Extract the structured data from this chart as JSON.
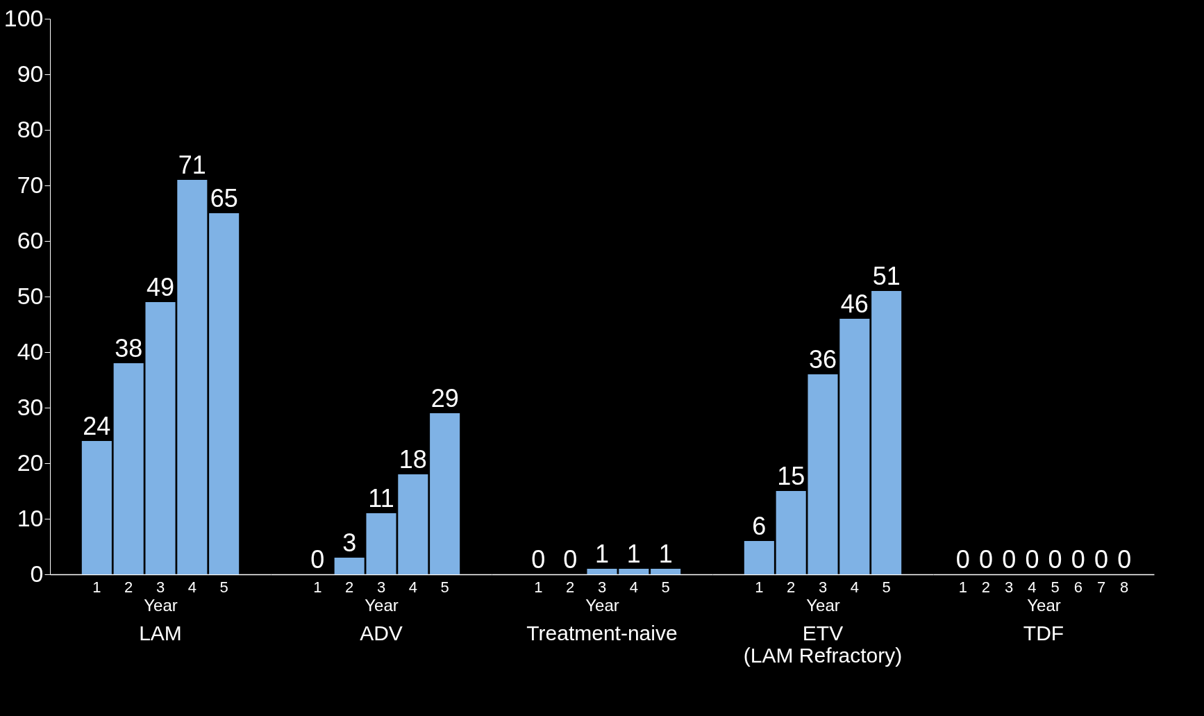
{
  "chart_data": [
    {
      "type": "bar",
      "title": "LAM",
      "xlabel": "Year",
      "categories": [
        "1",
        "2",
        "3",
        "4",
        "5"
      ],
      "values": [
        24,
        38,
        49,
        71,
        65
      ],
      "color": "#7fb2e5",
      "ylim": [
        0,
        100
      ],
      "yticks": [
        0,
        10,
        20,
        30,
        40,
        50,
        60,
        70,
        80,
        90,
        100
      ],
      "data_labels": true
    },
    {
      "type": "bar",
      "title": "ADV",
      "xlabel": "Year",
      "categories": [
        "1",
        "2",
        "3",
        "4",
        "5"
      ],
      "values": [
        0,
        3,
        11,
        18,
        29
      ],
      "color": "#7fb2e5",
      "ylim": [
        0,
        100
      ],
      "yticks": [
        0,
        10,
        20,
        30,
        40,
        50,
        60,
        70,
        80,
        90,
        100
      ],
      "data_labels": true,
      "tick_labels": "x"
    },
    {
      "type": "bar",
      "title": "Treatment-naive",
      "xlabel": "Year",
      "categories": [
        "1",
        "2",
        "3",
        "4",
        "5"
      ],
      "values": [
        0,
        0,
        1,
        1,
        1
      ],
      "color": "#7fb2e5",
      "ylim": [
        0,
        100
      ],
      "yticks": [
        0,
        10,
        20,
        30,
        40,
        50,
        60,
        70,
        80,
        90,
        100
      ],
      "data_labels": true,
      "tick_labels": "x"
    },
    {
      "type": "bar",
      "title": "ETV (LAM Refractory)",
      "xlabel": "Year",
      "categories": [
        "1",
        "2",
        "3",
        "4",
        "5"
      ],
      "values": [
        6,
        15,
        36,
        46,
        51
      ],
      "color": "#7fb2e5",
      "ylim": [
        0,
        100
      ],
      "yticks": [
        0,
        10,
        20,
        30,
        40,
        50,
        60,
        70,
        80,
        90,
        100
      ],
      "data_labels": true,
      "tick_labels": "x"
    },
    {
      "type": "bar",
      "title": "TDF",
      "xlabel": "Year",
      "categories": [
        "1",
        "2",
        "3",
        "4",
        "5",
        "6",
        "7",
        "8"
      ],
      "values": [
        0,
        0,
        0,
        0,
        0,
        0,
        0,
        0
      ],
      "color": "#7fb2e5",
      "ylim": [
        0,
        100
      ],
      "yticks": [
        0,
        10,
        20,
        30,
        40,
        50,
        60,
        70,
        80,
        90,
        100
      ],
      "data_labels": true,
      "tick_labels": "x"
    }
  ]
}
